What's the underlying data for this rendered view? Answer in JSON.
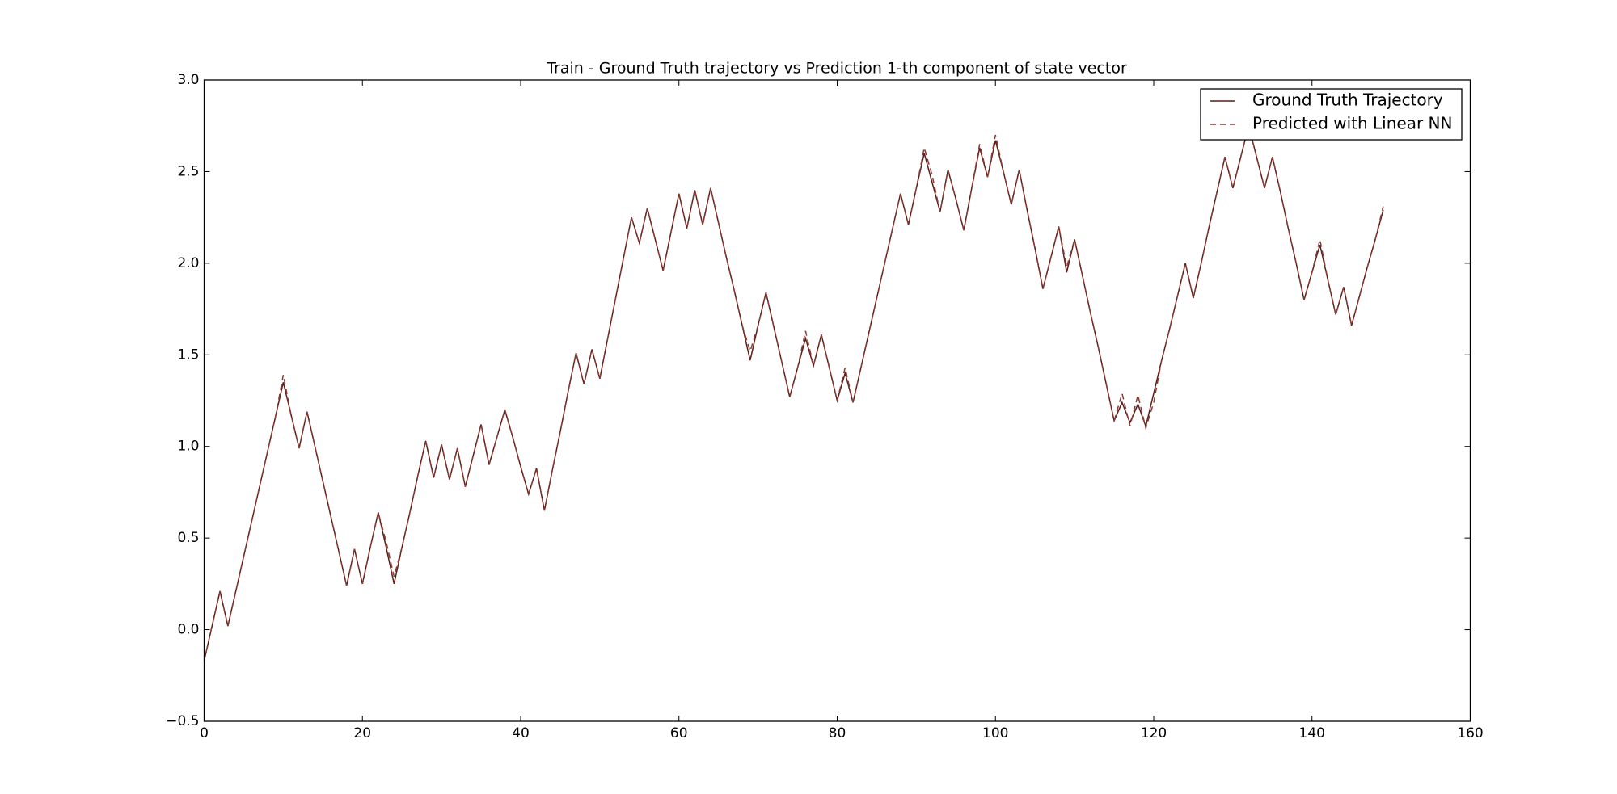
{
  "chart_data": {
    "type": "line",
    "title": "Train - Ground Truth trajectory vs Prediction 1-th component of state vector",
    "x": [
      0,
      1,
      2,
      3,
      4,
      5,
      6,
      7,
      8,
      9,
      10,
      11,
      12,
      13,
      14,
      15,
      16,
      17,
      18,
      19,
      20,
      21,
      22,
      23,
      24,
      25,
      26,
      27,
      28,
      29,
      30,
      31,
      32,
      33,
      34,
      35,
      36,
      37,
      38,
      39,
      40,
      41,
      42,
      43,
      44,
      45,
      46,
      47,
      48,
      49,
      50,
      51,
      52,
      53,
      54,
      55,
      56,
      57,
      58,
      59,
      60,
      61,
      62,
      63,
      64,
      65,
      66,
      67,
      68,
      69,
      70,
      71,
      72,
      73,
      74,
      75,
      76,
      77,
      78,
      79,
      80,
      81,
      82,
      83,
      84,
      85,
      86,
      87,
      88,
      89,
      90,
      91,
      92,
      93,
      94,
      95,
      96,
      97,
      98,
      99,
      100,
      101,
      102,
      103,
      104,
      105,
      106,
      107,
      108,
      109,
      110,
      111,
      112,
      113,
      114,
      115,
      116,
      117,
      118,
      119,
      120,
      121,
      122,
      123,
      124,
      125,
      126,
      127,
      128,
      129,
      130,
      131,
      132,
      133,
      134,
      135,
      136,
      137,
      138,
      139,
      140,
      141,
      142,
      143,
      144,
      145,
      146,
      147,
      148,
      149
    ],
    "series": [
      {
        "name": "Ground Truth Trajectory",
        "color": "#5b1f1a",
        "dash": false,
        "values": [
          -0.17,
          0.02,
          0.21,
          0.02,
          0.21,
          0.4,
          0.59,
          0.78,
          0.97,
          1.16,
          1.35,
          1.17,
          0.99,
          1.19,
          1.0,
          0.81,
          0.62,
          0.43,
          0.24,
          0.44,
          0.25,
          0.45,
          0.64,
          0.45,
          0.25,
          0.45,
          0.64,
          0.84,
          1.03,
          0.83,
          1.01,
          0.82,
          0.99,
          0.78,
          0.95,
          1.12,
          0.9,
          1.05,
          1.2,
          1.05,
          0.89,
          0.74,
          0.88,
          0.65,
          0.87,
          1.08,
          1.3,
          1.51,
          1.34,
          1.53,
          1.37,
          1.59,
          1.81,
          2.03,
          2.25,
          2.11,
          2.3,
          2.13,
          1.96,
          2.17,
          2.38,
          2.19,
          2.4,
          2.21,
          2.41,
          2.22,
          2.03,
          1.85,
          1.66,
          1.47,
          1.66,
          1.84,
          1.65,
          1.46,
          1.27,
          1.43,
          1.59,
          1.44,
          1.61,
          1.43,
          1.25,
          1.4,
          1.24,
          1.43,
          1.62,
          1.81,
          2.0,
          2.19,
          2.38,
          2.21,
          2.41,
          2.6,
          2.44,
          2.28,
          2.51,
          2.35,
          2.18,
          2.41,
          2.63,
          2.47,
          2.67,
          2.5,
          2.32,
          2.51,
          2.29,
          2.08,
          1.86,
          2.03,
          2.2,
          1.95,
          2.13,
          1.93,
          1.73,
          1.54,
          1.34,
          1.14,
          1.24,
          1.13,
          1.23,
          1.11,
          1.29,
          1.47,
          1.64,
          1.82,
          2.0,
          1.81,
          2.0,
          2.2,
          2.39,
          2.58,
          2.41,
          2.58,
          2.75,
          2.58,
          2.41,
          2.58,
          2.39,
          2.19,
          2.0,
          1.8,
          1.95,
          2.1,
          1.91,
          1.72,
          1.87,
          1.66,
          1.82,
          1.98,
          2.13,
          2.29
        ]
      },
      {
        "name": "Predicted with Linear NN",
        "color": "#8a3b36",
        "dash": true,
        "values": [
          -0.17,
          0.02,
          0.21,
          0.02,
          0.21,
          0.4,
          0.59,
          0.78,
          0.97,
          1.16,
          1.39,
          1.17,
          0.99,
          1.19,
          1.0,
          0.81,
          0.62,
          0.43,
          0.24,
          0.44,
          0.25,
          0.45,
          0.64,
          0.48,
          0.29,
          0.45,
          0.64,
          0.84,
          1.03,
          0.83,
          1.01,
          0.82,
          0.99,
          0.78,
          0.95,
          1.12,
          0.9,
          1.05,
          1.2,
          1.05,
          0.89,
          0.74,
          0.88,
          0.65,
          0.87,
          1.08,
          1.3,
          1.51,
          1.34,
          1.53,
          1.37,
          1.59,
          1.81,
          2.03,
          2.25,
          2.11,
          2.3,
          2.13,
          1.96,
          2.17,
          2.38,
          2.19,
          2.4,
          2.21,
          2.41,
          2.22,
          2.03,
          1.85,
          1.66,
          1.52,
          1.66,
          1.84,
          1.65,
          1.46,
          1.27,
          1.43,
          1.63,
          1.44,
          1.61,
          1.43,
          1.25,
          1.43,
          1.24,
          1.43,
          1.62,
          1.81,
          2.0,
          2.19,
          2.38,
          2.21,
          2.41,
          2.63,
          2.48,
          2.28,
          2.51,
          2.35,
          2.18,
          2.41,
          2.65,
          2.47,
          2.7,
          2.5,
          2.32,
          2.51,
          2.29,
          2.08,
          1.86,
          2.03,
          2.2,
          1.98,
          2.13,
          1.93,
          1.73,
          1.54,
          1.34,
          1.14,
          1.29,
          1.11,
          1.28,
          1.1,
          1.24,
          1.47,
          1.64,
          1.82,
          2.0,
          1.81,
          2.0,
          2.2,
          2.39,
          2.58,
          2.41,
          2.58,
          2.75,
          2.58,
          2.41,
          2.58,
          2.39,
          2.19,
          2.0,
          1.8,
          1.95,
          2.13,
          1.91,
          1.72,
          1.87,
          1.66,
          1.82,
          1.98,
          2.13,
          2.31
        ]
      }
    ],
    "xlim": [
      0,
      160
    ],
    "xticks": [
      0,
      20,
      40,
      60,
      80,
      100,
      120,
      140,
      160
    ],
    "ylim": [
      -0.5,
      3.0
    ],
    "yticks": [
      {
        "value": -0.5,
        "label": "−0.5"
      },
      {
        "value": 0,
        "label": "0.0"
      },
      0.5,
      {
        "value": 1,
        "label": "1.0"
      },
      1.5,
      {
        "value": 2,
        "label": "2.0"
      },
      2.5,
      {
        "value": 3,
        "label": "3.0"
      }
    ],
    "legend": "upper right",
    "grid": false
  }
}
